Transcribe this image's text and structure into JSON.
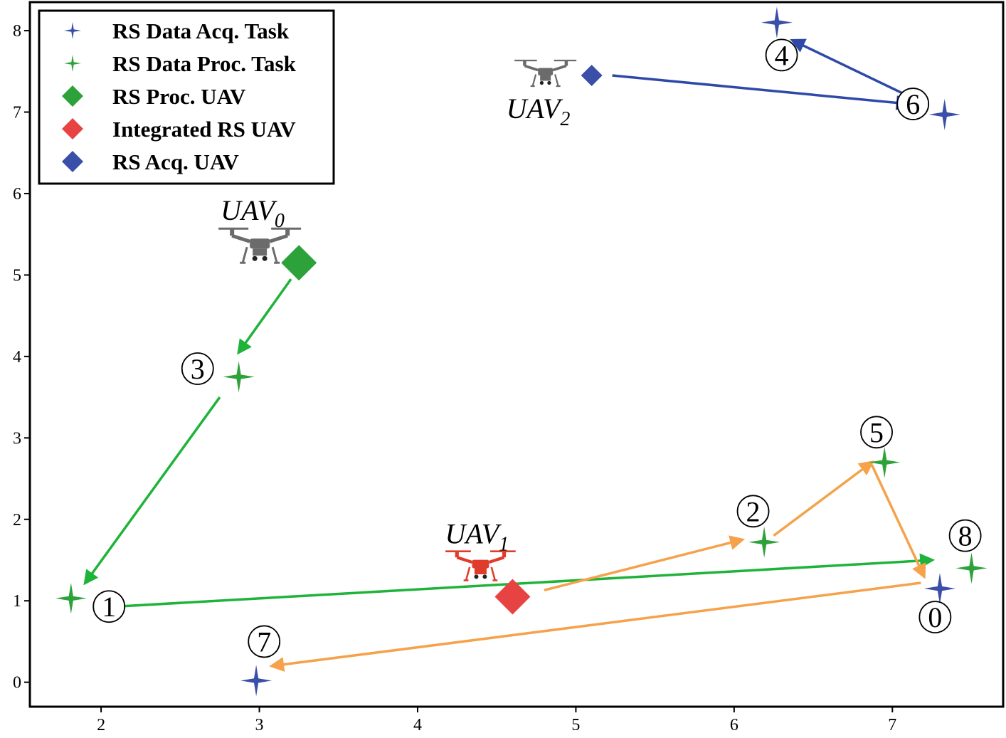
{
  "chart_data": {
    "type": "scatter",
    "xlim": [
      1.55,
      7.7
    ],
    "ylim": [
      -0.3,
      8.35
    ],
    "x_ticks": [
      "2",
      "3",
      "4",
      "5",
      "6",
      "7"
    ],
    "y_ticks": [
      "0",
      "1",
      "2",
      "3",
      "4",
      "5",
      "6",
      "7",
      "8"
    ],
    "grid": false,
    "legend": {
      "position": "top-left",
      "entries": [
        {
          "key": "acq_task",
          "label": "RS Data Acq. Task",
          "marker": "star-small",
          "color": "#3a4fa8"
        },
        {
          "key": "proc_task",
          "label": "RS Data Proc. Task",
          "marker": "star-small",
          "color": "#2ea23a"
        },
        {
          "key": "proc_uav",
          "label": "RS Proc. UAV",
          "marker": "diamond",
          "color": "#2ea23a"
        },
        {
          "key": "int_uav",
          "label": "Integrated RS UAV",
          "marker": "diamond",
          "color": "#e84343"
        },
        {
          "key": "acq_uav",
          "label": "RS Acq. UAV",
          "marker": "diamond",
          "color": "#3a4fa8"
        }
      ]
    },
    "tasks": [
      {
        "id": "0",
        "type": "acq",
        "x": 7.3,
        "y": 1.15,
        "lx": 7.27,
        "ly": 0.8
      },
      {
        "id": "1",
        "type": "proc",
        "x": 1.81,
        "y": 1.03,
        "lx": 2.05,
        "ly": 0.93
      },
      {
        "id": "2",
        "type": "proc",
        "x": 6.19,
        "y": 1.72,
        "lx": 6.12,
        "ly": 2.1
      },
      {
        "id": "3",
        "type": "proc",
        "x": 2.87,
        "y": 3.75,
        "lx": 2.61,
        "ly": 3.85
      },
      {
        "id": "4",
        "type": "acq",
        "x": 6.27,
        "y": 8.1,
        "lx": 6.3,
        "ly": 7.7
      },
      {
        "id": "5",
        "type": "proc",
        "x": 6.95,
        "y": 2.7,
        "lx": 6.9,
        "ly": 3.07
      },
      {
        "id": "6",
        "type": "acq",
        "x": 7.33,
        "y": 6.97,
        "lx": 7.13,
        "ly": 7.1
      },
      {
        "id": "7",
        "type": "acq",
        "x": 2.98,
        "y": 0.02,
        "lx": 3.03,
        "ly": 0.5
      },
      {
        "id": "8",
        "type": "proc",
        "x": 7.5,
        "y": 1.4,
        "lx": 7.46,
        "ly": 1.8
      }
    ],
    "uavs": [
      {
        "name": "UAV",
        "sub": "0",
        "type": "proc_uav",
        "x": 3.25,
        "y": 5.15,
        "size": "large",
        "icon_color": "#6b6b6b"
      },
      {
        "name": "UAV",
        "sub": "1",
        "type": "int_uav",
        "x": 4.6,
        "y": 1.05,
        "size": "large",
        "icon_color": "#e03c2c"
      },
      {
        "name": "UAV",
        "sub": "2",
        "type": "acq_uav",
        "x": 5.1,
        "y": 7.45,
        "size": "small",
        "icon_color": "#6b6b6b"
      }
    ],
    "routes": [
      {
        "uav": "0",
        "color": "#1fb33a",
        "segments": [
          {
            "from": [
              3.2,
              4.95
            ],
            "to": [
              2.87,
              4.05
            ]
          },
          {
            "from": [
              2.75,
              3.5
            ],
            "to": [
              1.9,
              1.22
            ]
          },
          {
            "from": [
              2.1,
              0.93
            ],
            "to": [
              7.25,
              1.5
            ]
          }
        ]
      },
      {
        "uav": "1",
        "color": "#f5a24a",
        "segments": [
          {
            "from": [
              4.8,
              1.13
            ],
            "to": [
              6.05,
              1.75
            ]
          },
          {
            "from": [
              6.25,
              1.8
            ],
            "to": [
              6.87,
              2.7
            ]
          },
          {
            "from": [
              6.87,
              2.67
            ],
            "to": [
              7.2,
              1.3
            ]
          },
          {
            "from": [
              7.18,
              1.22
            ],
            "to": [
              3.08,
              0.2
            ]
          }
        ]
      },
      {
        "uav": "2",
        "color": "#2f49a8",
        "segments": [
          {
            "from": [
              5.23,
              7.45
            ],
            "to": [
              7.1,
              7.1
            ]
          },
          {
            "from": [
              7.13,
              7.17
            ],
            "to": [
              6.37,
              7.88
            ]
          }
        ]
      }
    ]
  }
}
